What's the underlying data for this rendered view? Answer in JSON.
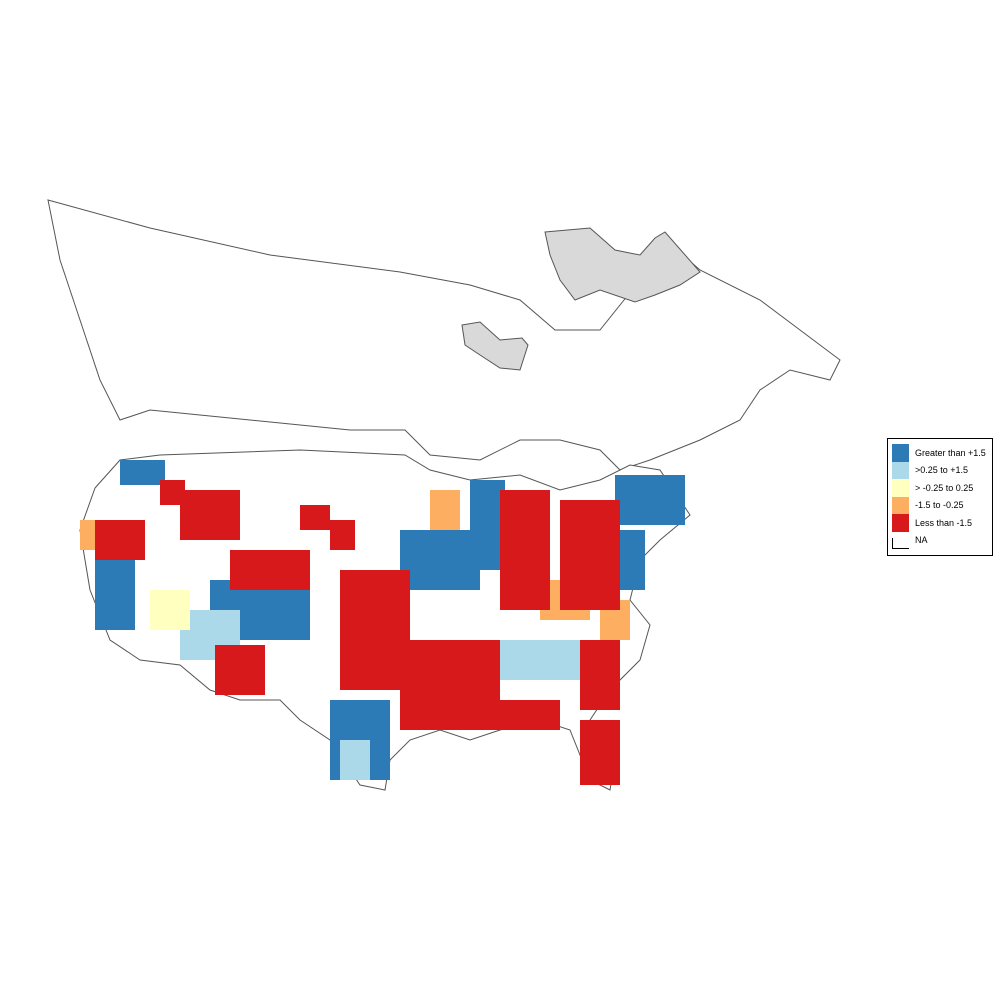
{
  "map": {
    "colors": {
      "greater_than_1_5": "#2c7bb6",
      "from_0_25_to_1_5": "#abd9e9",
      "neutral": "#ffffbf",
      "from_neg_1_5_to_neg_0_25": "#fdae61",
      "less_than_neg_1_5": "#d7191c",
      "na": "#ffffff",
      "excluded_region": "#d9d9d9",
      "boundary": "#555555"
    }
  },
  "legend": {
    "items": [
      {
        "label": "Greater than +1.5",
        "color": "#2c7bb6"
      },
      {
        "label": ">0.25 to +1.5",
        "color": "#abd9e9"
      },
      {
        "label": "> -0.25 to 0.25",
        "color": "#ffffbf"
      },
      {
        "label": "-1.5 to -0.25",
        "color": "#fdae61"
      },
      {
        "label": "Less than -1.5",
        "color": "#d7191c"
      },
      {
        "label": "NA",
        "color": "#ffffff"
      }
    ]
  }
}
